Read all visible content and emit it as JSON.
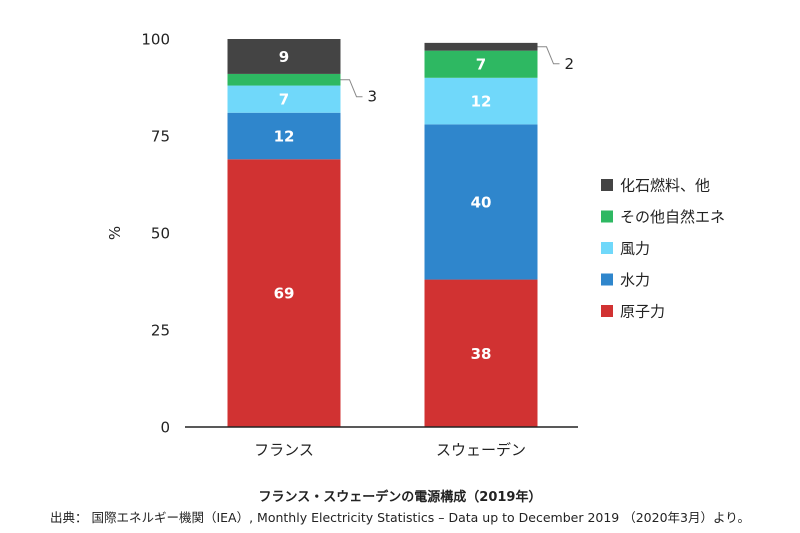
{
  "chart_data": {
    "type": "bar",
    "stacked": true,
    "categories": [
      "フランス",
      "スウェーデン"
    ],
    "series": [
      {
        "name": "原子力",
        "values": [
          69,
          38
        ],
        "color": "#d13232"
      },
      {
        "name": "水力",
        "values": [
          12,
          40
        ],
        "color": "#2f86cc"
      },
      {
        "name": "風力",
        "values": [
          7,
          12
        ],
        "color": "#70d8fa"
      },
      {
        "name": "その他自然エネ",
        "values": [
          3,
          7
        ],
        "color": "#2eb862"
      },
      {
        "name": "化石燃料、他",
        "values": [
          9,
          2
        ],
        "color": "#444444"
      }
    ],
    "ylabel": "%",
    "ylim": [
      0,
      100
    ],
    "yticks": [
      0,
      25,
      50,
      75,
      100
    ],
    "grid": false,
    "legend": "right"
  },
  "caption": "フランス・スウェーデンの電源構成（2019年）",
  "source": "出典： 国際エネルギー機関（IEA）, Monthly Electricity Statistics – Data up to December 2019 （2020年3月）より。"
}
